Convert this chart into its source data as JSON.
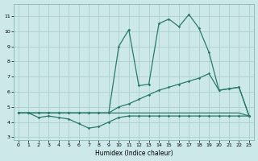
{
  "xlabel": "Humidex (Indice chaleur)",
  "background_color": "#cce8e8",
  "grid_color": "#aacfcf",
  "line_color": "#2a7a6a",
  "xlim": [
    -0.5,
    23.5
  ],
  "ylim": [
    2.8,
    11.8
  ],
  "yticks": [
    3,
    4,
    5,
    6,
    7,
    8,
    9,
    10,
    11
  ],
  "xticks": [
    0,
    1,
    2,
    3,
    4,
    5,
    6,
    7,
    8,
    9,
    10,
    11,
    12,
    13,
    14,
    15,
    16,
    17,
    18,
    19,
    20,
    21,
    22,
    23
  ],
  "line_flat_x": [
    0,
    1,
    2,
    3,
    4,
    5,
    6,
    7,
    8,
    9,
    10,
    11,
    12,
    13,
    14,
    15,
    16,
    17,
    18,
    19,
    20,
    21,
    22,
    23
  ],
  "line_flat_y": [
    4.6,
    4.6,
    4.6,
    4.6,
    4.6,
    4.6,
    4.6,
    4.6,
    4.6,
    4.6,
    4.6,
    4.6,
    4.6,
    4.6,
    4.6,
    4.6,
    4.6,
    4.6,
    4.6,
    4.6,
    4.6,
    4.6,
    4.6,
    4.4
  ],
  "line_wavy_x": [
    0,
    1,
    2,
    3,
    4,
    5,
    6,
    7,
    8,
    9,
    10,
    11,
    12,
    13,
    14,
    15,
    16,
    17,
    18,
    19,
    20,
    21,
    22,
    23
  ],
  "line_wavy_y": [
    4.6,
    4.6,
    4.3,
    4.4,
    4.3,
    4.2,
    3.9,
    3.6,
    3.7,
    4.0,
    4.3,
    4.4,
    4.4,
    4.4,
    4.4,
    4.4,
    4.4,
    4.4,
    4.4,
    4.4,
    4.4,
    4.4,
    4.4,
    4.4
  ],
  "line_mid_x": [
    0,
    1,
    2,
    3,
    4,
    5,
    6,
    7,
    8,
    9,
    10,
    11,
    12,
    13,
    14,
    15,
    16,
    17,
    18,
    19,
    20,
    21,
    22,
    23
  ],
  "line_mid_y": [
    4.6,
    4.6,
    4.6,
    4.6,
    4.6,
    4.6,
    4.6,
    4.6,
    4.6,
    4.6,
    5.0,
    5.2,
    5.5,
    5.8,
    6.1,
    6.3,
    6.5,
    6.7,
    6.9,
    7.2,
    6.1,
    6.2,
    6.3,
    4.4
  ],
  "line_top_x": [
    0,
    1,
    2,
    3,
    4,
    5,
    6,
    7,
    8,
    9,
    10,
    11,
    12,
    13,
    14,
    15,
    16,
    17,
    18,
    19,
    20,
    21,
    22,
    23
  ],
  "line_top_y": [
    4.6,
    4.6,
    4.6,
    4.6,
    4.6,
    4.6,
    4.6,
    4.6,
    4.6,
    4.6,
    9.0,
    10.1,
    6.4,
    6.5,
    10.5,
    10.8,
    10.3,
    11.1,
    10.2,
    8.6,
    6.1,
    6.2,
    6.3,
    4.4
  ]
}
